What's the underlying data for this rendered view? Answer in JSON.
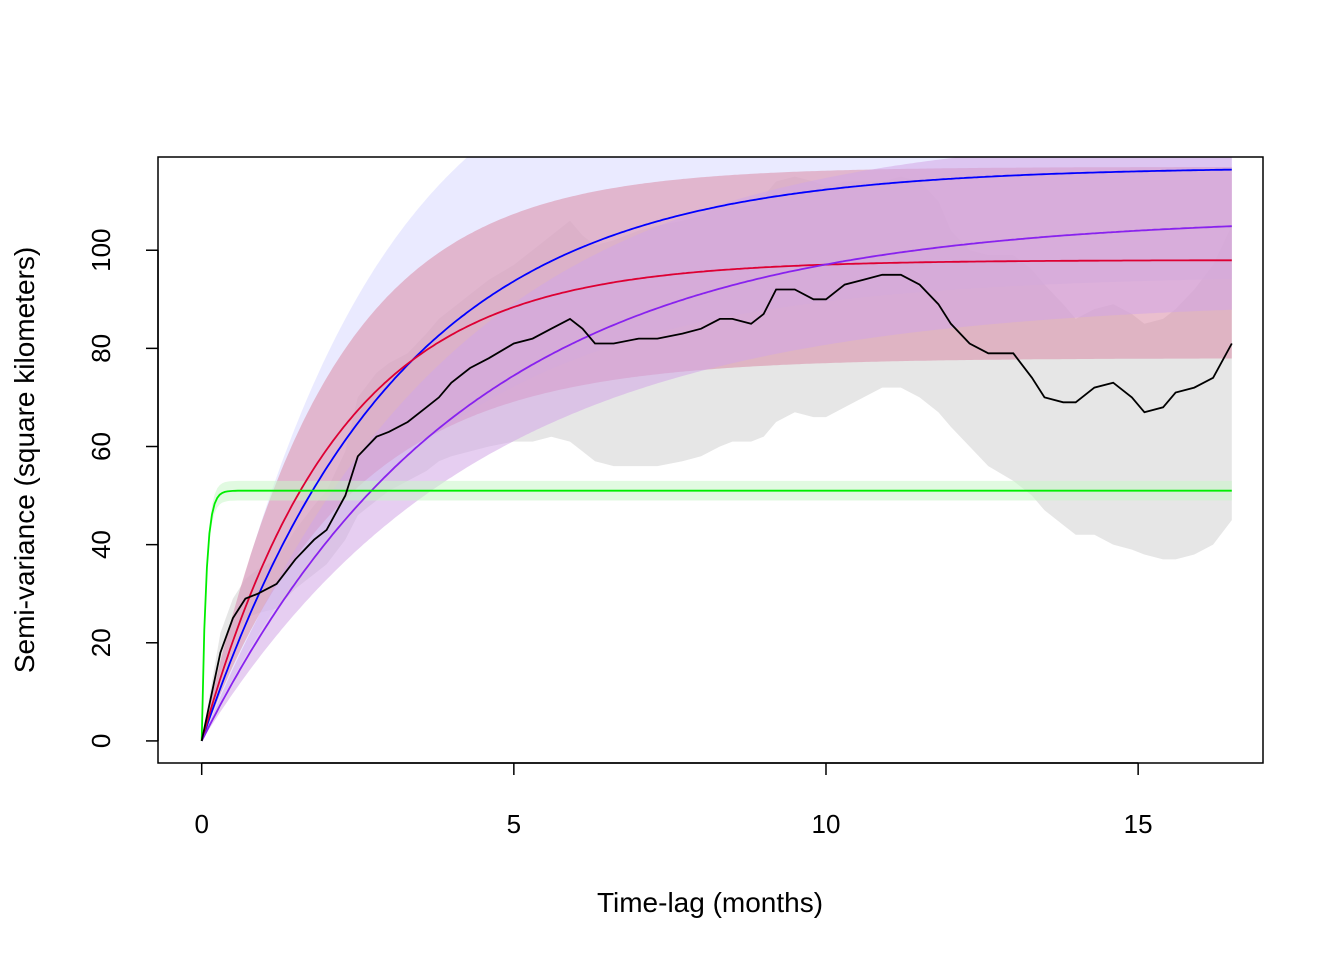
{
  "chart_data": {
    "type": "line",
    "title": "",
    "xlabel": "Time-lag (months)",
    "ylabel": "Semi-variance (square kilometers)",
    "xlim": [
      -0.7,
      17.0
    ],
    "ylim": [
      -4.5,
      119
    ],
    "x_ticks": [
      0,
      5,
      10,
      15
    ],
    "y_ticks": [
      0,
      20,
      40,
      60,
      80,
      100
    ],
    "x_tick_labels": [
      "0",
      "5",
      "10",
      "15"
    ],
    "y_tick_labels": [
      "0",
      "20",
      "40",
      "60",
      "80",
      "100"
    ],
    "grid": false,
    "legend": "none",
    "empirical": {
      "color": "#000000",
      "band_color": "#e6e6e6",
      "x": [
        0,
        0.3,
        0.5,
        0.7,
        0.9,
        1.2,
        1.5,
        1.8,
        2.0,
        2.3,
        2.5,
        2.8,
        3.0,
        3.3,
        3.6,
        3.8,
        4.0,
        4.3,
        4.6,
        5.0,
        5.3,
        5.6,
        5.9,
        6.1,
        6.3,
        6.6,
        7.0,
        7.3,
        7.7,
        8.0,
        8.3,
        8.5,
        8.8,
        9.0,
        9.2,
        9.5,
        9.8,
        10.0,
        10.3,
        10.6,
        10.9,
        11.2,
        11.5,
        11.8,
        12.0,
        12.3,
        12.6,
        13.0,
        13.3,
        13.5,
        13.8,
        14.0,
        14.3,
        14.6,
        14.9,
        15.1,
        15.4,
        15.6,
        15.9,
        16.2,
        16.5
      ],
      "y": [
        0,
        18,
        25,
        29,
        30,
        32,
        37,
        41,
        43,
        50,
        58,
        62,
        63,
        65,
        68,
        70,
        73,
        76,
        78,
        81,
        82,
        84,
        86,
        84,
        81,
        81,
        82,
        82,
        83,
        84,
        86,
        86,
        85,
        87,
        92,
        92,
        90,
        90,
        93,
        94,
        95,
        95,
        93,
        89,
        85,
        81,
        79,
        79,
        74,
        70,
        69,
        69,
        72,
        73,
        70,
        67,
        68,
        71,
        72,
        74,
        81
      ],
      "low": [
        0,
        14,
        21,
        25,
        26,
        27,
        31,
        34,
        36,
        41,
        46,
        49,
        51,
        53,
        55,
        57,
        58,
        59,
        60,
        61,
        61,
        62,
        61,
        59,
        57,
        56,
        56,
        56,
        57,
        58,
        60,
        61,
        61,
        62,
        65,
        67,
        66,
        66,
        68,
        70,
        72,
        72,
        70,
        67,
        64,
        60,
        56,
        53,
        50,
        47,
        44,
        42,
        42,
        40,
        39,
        38,
        37,
        37,
        38,
        40,
        45
      ],
      "high": [
        0,
        22,
        29,
        33,
        35,
        37,
        43,
        48,
        51,
        59,
        70,
        75,
        77,
        79,
        83,
        86,
        88,
        91,
        94,
        97,
        100,
        103,
        106,
        103,
        101,
        102,
        104,
        105,
        106,
        107,
        109,
        109,
        109,
        111,
        114,
        115,
        114,
        113,
        114,
        114,
        114,
        115,
        114,
        110,
        104,
        100,
        99,
        99,
        96,
        93,
        89,
        86,
        88,
        89,
        87,
        85,
        86,
        88,
        92,
        97,
        105
      ]
    },
    "series": [
      {
        "model": "exponential",
        "color": "#0000ff",
        "band_color": "#d9d9ff",
        "sill": 117,
        "tau": 3.1,
        "lower_sill": 95,
        "lower_tau": 3.5,
        "upper_sill": 150,
        "upper_tau": 2.7
      },
      {
        "model": "exponential",
        "color": "#dd0033",
        "band_color": "#d98aa6",
        "sill": 98,
        "tau": 2.15,
        "lower_sill": 78,
        "lower_tau": 2.3,
        "upper_sill": 117,
        "upper_tau": 2.0
      },
      {
        "model": "exponential",
        "color": "#8822ee",
        "band_color": "#d2a6e6",
        "sill": 107,
        "tau": 4.2,
        "lower_sill": 90,
        "lower_tau": 4.4,
        "upper_sill": 125,
        "upper_tau": 4.0
      },
      {
        "model": "exponential",
        "color": "#00ee00",
        "band_color": "#c9f5c9",
        "sill": 51,
        "tau": 0.07,
        "lower_sill": 49,
        "lower_tau": 0.07,
        "upper_sill": 53,
        "upper_tau": 0.07
      }
    ]
  }
}
